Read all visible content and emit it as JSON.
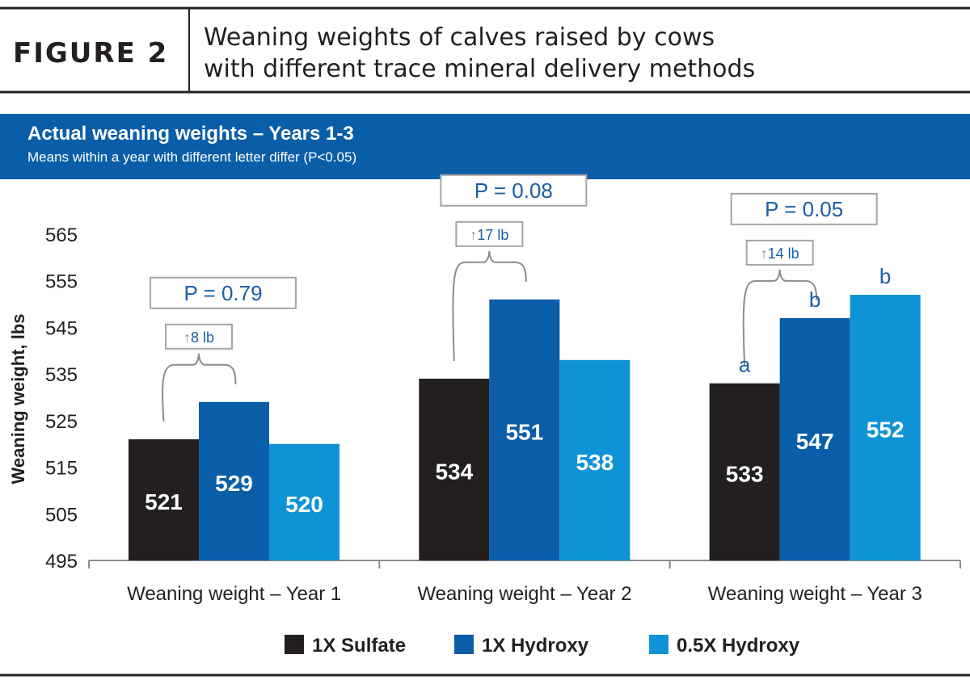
{
  "figure": {
    "label": "FIGURE 2",
    "title_line1": "Weaning weights of calves raised by cows",
    "title_line2": "with different trace mineral delivery methods"
  },
  "banner": {
    "title": "Actual weaning weights – Years 1-3",
    "subtitle": "Means within a year with different letter differ (P<0.05)",
    "color": "#0a5ea8"
  },
  "chart_data": {
    "type": "bar",
    "categories": [
      "Weaning weight – Year 1",
      "Weaning weight – Year 2",
      "Weaning weight – Year 3"
    ],
    "series": [
      {
        "name": "1X Sulfate",
        "color": "#231f20",
        "values": [
          521,
          534,
          533
        ],
        "value_labels": [
          "521",
          "534",
          "533"
        ],
        "sig_letters": [
          "",
          "",
          "a"
        ]
      },
      {
        "name": "1X Hydroxy",
        "color": "#0a5ea8",
        "values": [
          529,
          551,
          547
        ],
        "value_labels": [
          "529",
          "551",
          "547"
        ],
        "sig_letters": [
          "",
          "",
          "b"
        ]
      },
      {
        "name": "0.5X Hydroxy",
        "color": "#0e93d6",
        "values": [
          520,
          538,
          552
        ],
        "value_labels": [
          "520",
          "538",
          "552"
        ],
        "sig_letters": [
          "",
          "",
          "b"
        ]
      }
    ],
    "ylabel": "Weaning weight, lbs",
    "xlabel": "",
    "ylim": [
      495,
      565
    ],
    "yticks": [
      "565",
      "555",
      "545",
      "535",
      "525",
      "515",
      "505",
      "495"
    ],
    "grid": false,
    "legend_position": "bottom",
    "annotations": [
      {
        "category": "Weaning weight – Year 1",
        "p_text": "P = 0.79",
        "diff_text": "8 lb",
        "arrow": "↑"
      },
      {
        "category": "Weaning weight – Year 2",
        "p_text": "P = 0.08",
        "diff_text": "17 lb",
        "arrow": "↑"
      },
      {
        "category": "Weaning weight – Year 3",
        "p_text": "P = 0.05",
        "diff_text": "14 lb",
        "arrow": "↑"
      }
    ]
  }
}
